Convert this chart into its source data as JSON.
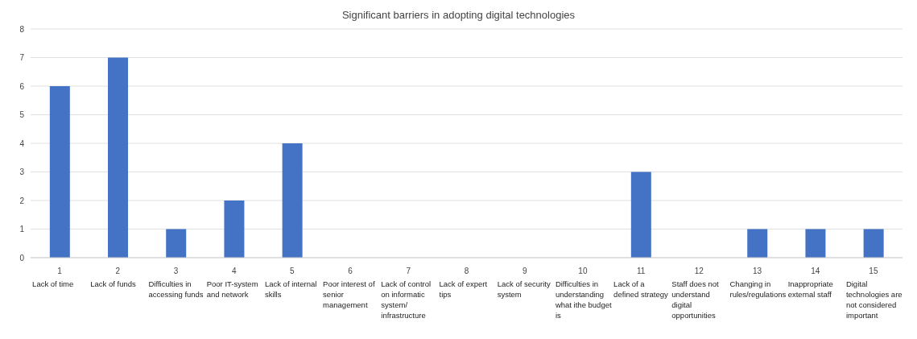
{
  "chart_data": {
    "type": "bar",
    "title": "Significant barriers in adopting digital technologies",
    "categories": [
      "1",
      "2",
      "3",
      "4",
      "5",
      "6",
      "7",
      "8",
      "9",
      "10",
      "11",
      "12",
      "13",
      "14",
      "15"
    ],
    "values": [
      6,
      7,
      1,
      2,
      4,
      0,
      0,
      0,
      0,
      0,
      3,
      0,
      1,
      1,
      1
    ],
    "color": "#4472c4",
    "ylim": [
      0,
      8
    ],
    "yticks": [
      0,
      1,
      2,
      3,
      4,
      5,
      6,
      7,
      8
    ],
    "grid": "y",
    "legend": false,
    "annotations": [
      "Lack of time",
      "Lack of funds",
      "Difficulties in accessing funds",
      "Poor IT-system and network",
      "Lack of internal skills",
      "Poor interest of senior management",
      "Lack of control on informatic system/ infrastructure",
      "Lack of expert tips",
      "Lack of security system",
      "Difficulties in understanding what ithe budget is",
      "Lack of a defined strategy",
      "Staff does not understand digital opportunities",
      "Changing in rules/regulations",
      "Inappropriate external staff",
      "Digital technologies are not considered important"
    ]
  }
}
